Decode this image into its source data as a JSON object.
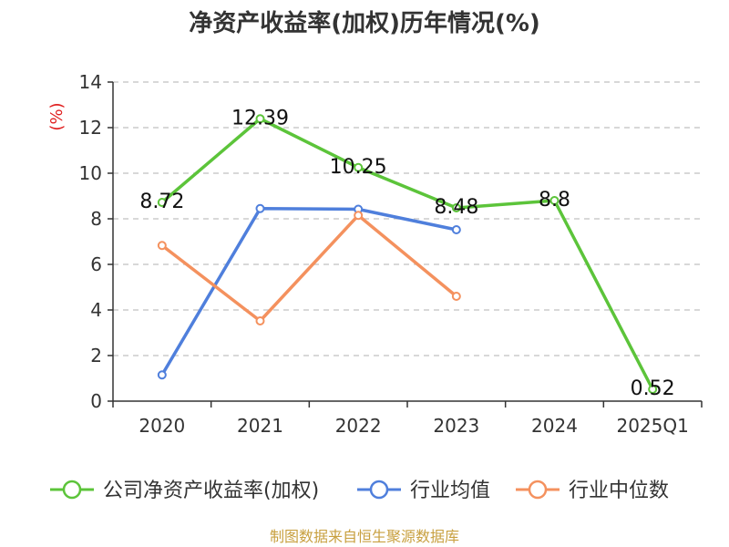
{
  "chart_data": {
    "type": "line",
    "title": "净资产收益率(加权)历年情况(%)",
    "ylabel": "(%)",
    "categories": [
      "2020",
      "2021",
      "2022",
      "2023",
      "2024",
      "2025Q1"
    ],
    "yticks": [
      "0",
      "2",
      "4",
      "6",
      "8",
      "10",
      "12",
      "14"
    ],
    "ylim": [
      0,
      14
    ],
    "grid": true,
    "legend_position": "bottom",
    "series": [
      {
        "name": "公司净资产收益率(加权)",
        "color": "#5cc43a",
        "values": [
          8.72,
          12.39,
          10.25,
          8.48,
          8.8,
          0.52
        ],
        "labels": [
          "8.72",
          "12.39",
          "10.25",
          "8.48",
          "8.8",
          "0.52"
        ]
      },
      {
        "name": "行业均值",
        "color": "#4f7fdc",
        "values": [
          1.15,
          8.45,
          8.42,
          7.52,
          null,
          null
        ]
      },
      {
        "name": "行业中位数",
        "color": "#f4915e",
        "values": [
          6.83,
          3.52,
          8.15,
          4.6,
          null,
          null
        ]
      }
    ]
  },
  "footer": {
    "source": "制图数据来自恒生聚源数据库"
  }
}
